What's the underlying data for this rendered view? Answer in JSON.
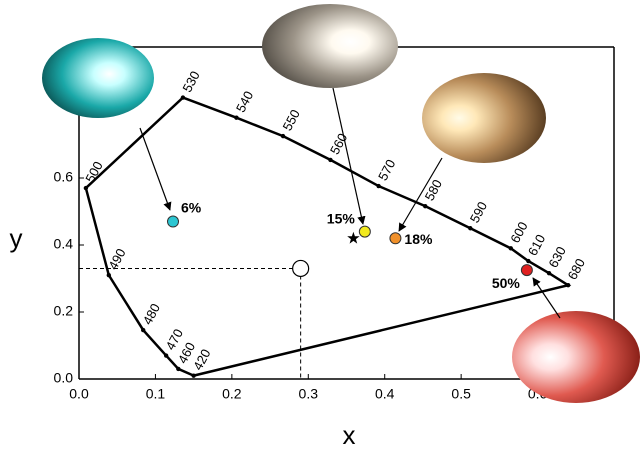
{
  "chart_data": {
    "type": "scatter",
    "x_label": "x",
    "y_label": "y",
    "xlim": [
      0,
      0.7
    ],
    "ylim": [
      0,
      1.0
    ],
    "xticks": [
      {
        "value": 0,
        "label": "0.0"
      },
      0.1,
      0.2,
      0.3,
      0.4,
      0.5,
      0.6
    ],
    "yticks": [
      {
        "value": 0,
        "label": "0.0"
      },
      0.2,
      0.4,
      0.6
    ],
    "spectral_locus": {
      "wavelengths": [
        420,
        460,
        470,
        480,
        490,
        500,
        530,
        540,
        550,
        560,
        570,
        580,
        590,
        600,
        610,
        630,
        680
      ],
      "x": [
        0.15,
        0.13,
        0.114,
        0.084,
        0.039,
        0.009,
        0.136,
        0.206,
        0.267,
        0.329,
        0.392,
        0.453,
        0.512,
        0.565,
        0.588,
        0.615,
        0.64
      ],
      "y": [
        0.01,
        0.03,
        0.07,
        0.146,
        0.31,
        0.57,
        0.84,
        0.78,
        0.725,
        0.654,
        0.576,
        0.516,
        0.45,
        0.39,
        0.352,
        0.316,
        0.28
      ],
      "color": "#000000"
    },
    "series": [
      {
        "name": "6%",
        "color": "#2cc6d2",
        "x": [
          0.123
        ],
        "y": [
          0.47
        ]
      },
      {
        "name": "15%",
        "color": "#f2ea1e",
        "x": [
          0.374
        ],
        "y": [
          0.44
        ]
      },
      {
        "name": "18%",
        "color": "#f0902a",
        "x": [
          0.414
        ],
        "y": [
          0.42
        ]
      },
      {
        "name": "50%",
        "color": "#e02020",
        "x": [
          0.586
        ],
        "y": [
          0.325
        ]
      }
    ],
    "star": {
      "x": 0.359,
      "y": 0.42,
      "color": "#000000"
    },
    "white_point": {
      "x": 0.29,
      "y": 0.33,
      "color": "#ffffff"
    }
  }
}
